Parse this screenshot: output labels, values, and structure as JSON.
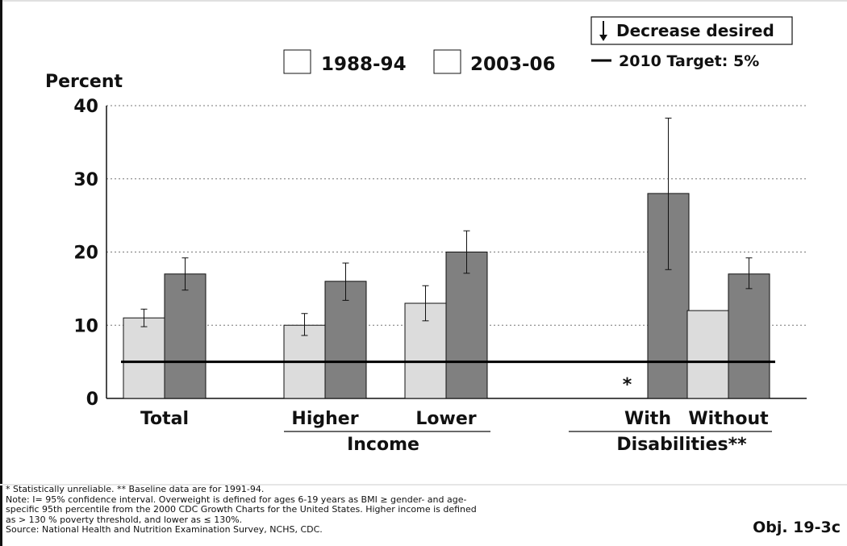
{
  "chart_data": {
    "type": "bar",
    "ylabel": "Percent",
    "ylim": [
      0,
      40
    ],
    "yticks": [
      "0",
      "10",
      "20",
      "30",
      "40"
    ],
    "grid": "horizontal dotted at 10, 20, 30, 40",
    "categories": [
      "Total",
      "Higher",
      "Lower",
      "With",
      "Without"
    ],
    "groups": [
      {
        "label": "Income",
        "categories": [
          "Higher",
          "Lower"
        ]
      },
      {
        "label": "Disabilities**",
        "categories": [
          "With",
          "Without"
        ]
      }
    ],
    "series": [
      {
        "name": "1988-94",
        "color": "#dcdcdc",
        "values": [
          11,
          10,
          13,
          null,
          12
        ],
        "err_low": [
          9.8,
          8.6,
          10.6,
          null,
          null
        ],
        "err_high": [
          12.2,
          11.6,
          15.4,
          null,
          null
        ]
      },
      {
        "name": "2003-06",
        "color": "#808080",
        "values": [
          17,
          16,
          20,
          28,
          17
        ],
        "err_low": [
          14.8,
          13.4,
          17.1,
          17.6,
          15
        ],
        "err_high": [
          19.2,
          18.5,
          22.9,
          38.3,
          19.2
        ]
      }
    ],
    "target": {
      "label": "2010 Target: 5%",
      "value": 5
    },
    "annotations": [
      {
        "category": "With",
        "series": "1988-94",
        "text": "*"
      }
    ],
    "legend_position": "top",
    "decrease_label": "Decrease desired"
  },
  "footnotes": [
    "* Statistically unreliable.  ** Baseline data are for 1991-94.",
    "Note: I= 95% confidence interval. Overweight is defined for ages 6-19 years as BMI ≥ gender- and age-",
    "specific 95th percentile from the 2000 CDC Growth Charts for the United States. Higher income is defined",
    "as > 130 % poverty threshold, and lower as ≤ 130%.",
    "Source: National Health and Nutrition Examination Survey, NCHS, CDC."
  ],
  "objective": "Obj. 19-3c"
}
